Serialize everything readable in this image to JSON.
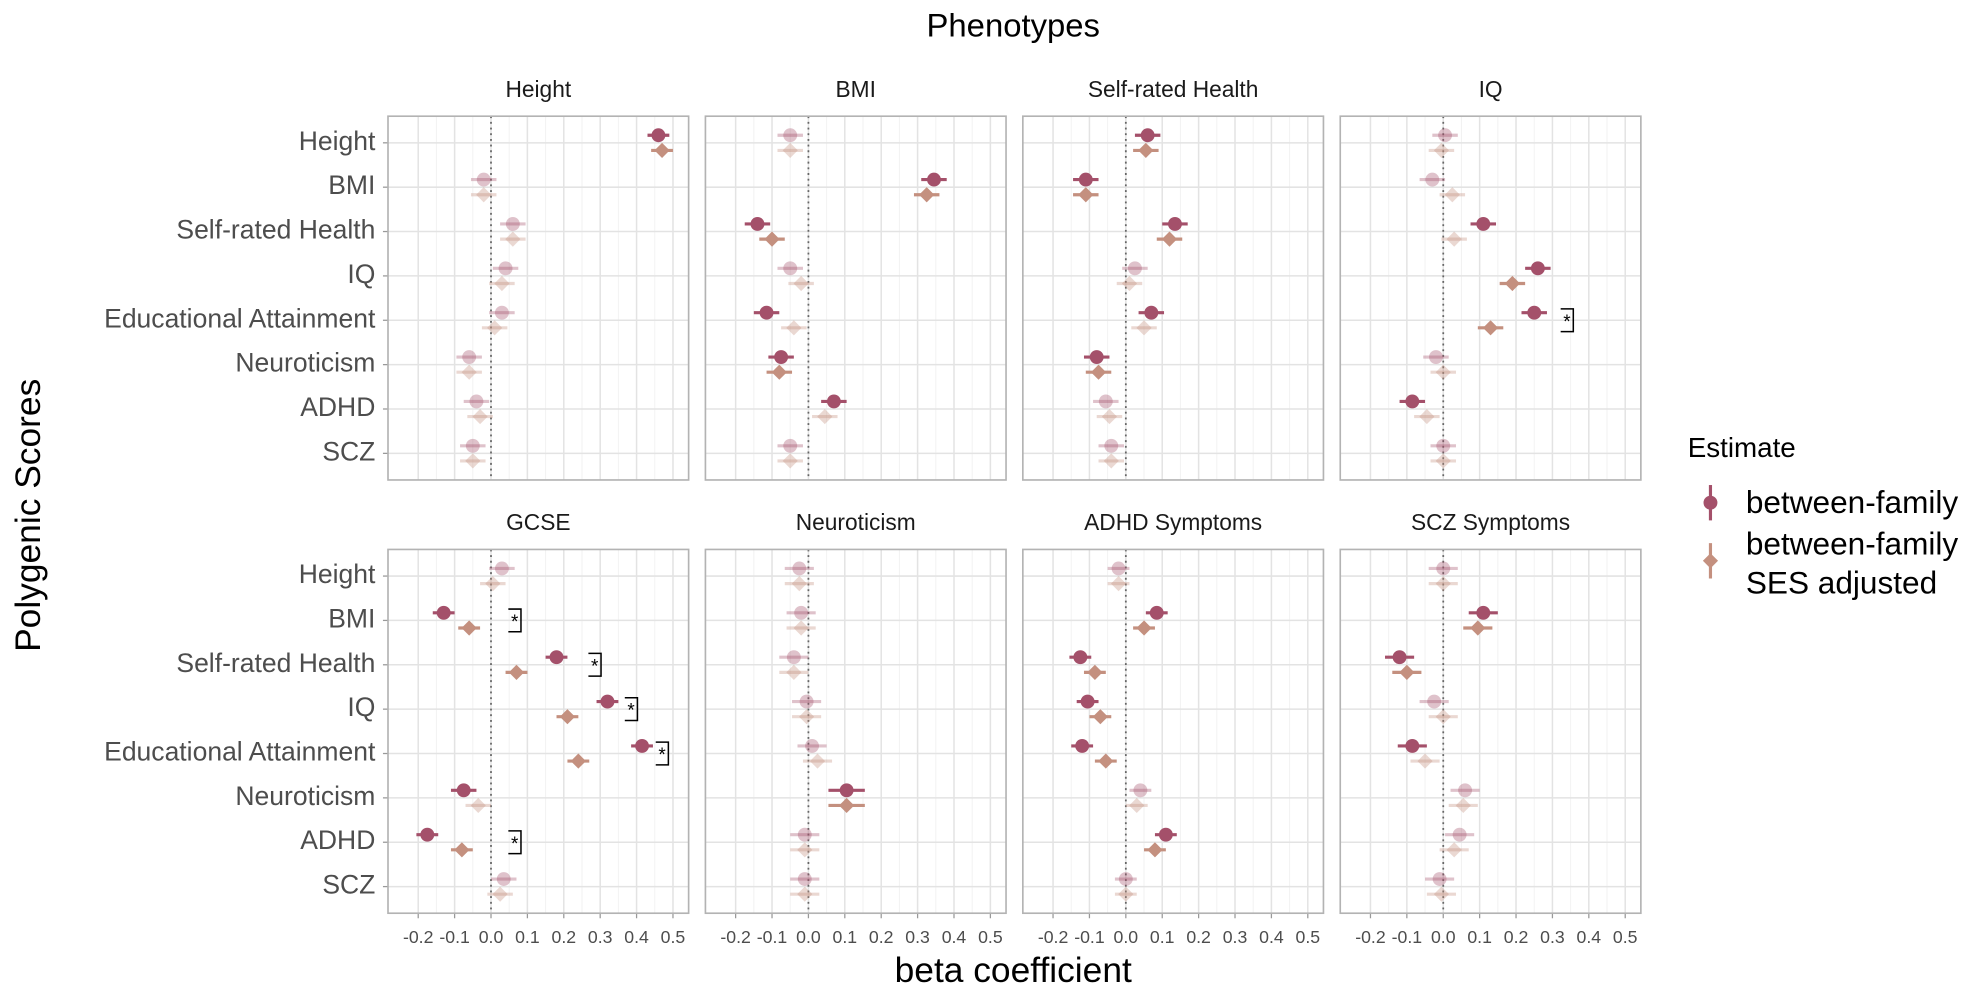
{
  "figure": {
    "title": "Phenotypes",
    "xlabel": "beta coefficient",
    "ylabel": "Polygenic Scores"
  },
  "categories": [
    "Height",
    "BMI",
    "Self-rated Health",
    "IQ",
    "Educational Attainment",
    "Neuroticism",
    "ADHD",
    "SCZ"
  ],
  "xlim": [
    -0.283,
    0.543
  ],
  "xticks": [
    -0.2,
    -0.1,
    {
      "value": 0,
      "label": "0.0"
    },
    0.1,
    0.2,
    0.3,
    0.4,
    0.5
  ],
  "legend": {
    "title": "Estimate",
    "series": [
      {
        "name": "between-family",
        "color": "#a4506a",
        "marker": "circle"
      },
      {
        "name": "between-family SES adjusted",
        "color": "#c4907f",
        "marker": "diamond"
      }
    ]
  },
  "chart_data": [
    {
      "type": "dot",
      "title": "Height",
      "series": [
        {
          "values": [
            0.46,
            -0.02,
            0.06,
            0.04,
            0.03,
            -0.06,
            -0.04,
            -0.05
          ],
          "errors": [
            0.03,
            0.035,
            0.035,
            0.035,
            0.035,
            0.035,
            0.035,
            0.035
          ],
          "alpha": [
            1,
            0.35,
            0.35,
            0.35,
            0.35,
            0.35,
            0.35,
            0.35
          ]
        },
        {
          "values": [
            0.47,
            -0.02,
            0.06,
            0.03,
            0.01,
            -0.06,
            -0.03,
            -0.05
          ],
          "errors": [
            0.03,
            0.035,
            0.035,
            0.035,
            0.035,
            0.035,
            0.035,
            0.035
          ],
          "alpha": [
            1,
            0.35,
            0.35,
            0.35,
            0.35,
            0.35,
            0.35,
            0.35
          ]
        }
      ]
    },
    {
      "type": "dot",
      "title": "BMI",
      "series": [
        {
          "values": [
            -0.05,
            0.345,
            -0.14,
            -0.05,
            -0.115,
            -0.075,
            0.07,
            -0.05
          ],
          "errors": [
            0.035,
            0.035,
            0.035,
            0.035,
            0.035,
            0.035,
            0.035,
            0.035
          ],
          "alpha": [
            0.35,
            1,
            1,
            0.35,
            1,
            1,
            1,
            0.35
          ]
        },
        {
          "values": [
            -0.05,
            0.325,
            -0.1,
            -0.02,
            -0.04,
            -0.08,
            0.045,
            -0.05
          ],
          "errors": [
            0.035,
            0.035,
            0.035,
            0.035,
            0.035,
            0.035,
            0.035,
            0.035
          ],
          "alpha": [
            0.35,
            1,
            1,
            0.35,
            0.35,
            1,
            0.35,
            0.35
          ]
        }
      ]
    },
    {
      "type": "dot",
      "title": "Self-rated Health",
      "series": [
        {
          "values": [
            0.06,
            -0.11,
            0.135,
            0.025,
            0.07,
            -0.08,
            -0.055,
            -0.04
          ],
          "errors": [
            0.035,
            0.035,
            0.035,
            0.035,
            0.035,
            0.035,
            0.035,
            0.035
          ],
          "alpha": [
            1,
            1,
            1,
            0.35,
            1,
            1,
            0.35,
            0.35
          ]
        },
        {
          "values": [
            0.055,
            -0.11,
            0.12,
            0.01,
            0.05,
            -0.075,
            -0.045,
            -0.04
          ],
          "errors": [
            0.035,
            0.035,
            0.035,
            0.035,
            0.035,
            0.035,
            0.035,
            0.035
          ],
          "alpha": [
            1,
            1,
            1,
            0.35,
            0.35,
            1,
            0.35,
            0.35
          ]
        }
      ]
    },
    {
      "type": "dot",
      "title": "IQ",
      "series": [
        {
          "values": [
            0.005,
            -0.03,
            0.11,
            0.26,
            0.25,
            -0.02,
            -0.085,
            0
          ],
          "errors": [
            0.035,
            0.035,
            0.035,
            0.035,
            0.035,
            0.035,
            0.035,
            0.035
          ],
          "alpha": [
            0.35,
            0.35,
            1,
            1,
            1,
            0.35,
            1,
            0.35
          ]
        },
        {
          "values": [
            -0.005,
            0.025,
            0.03,
            0.19,
            0.13,
            0,
            -0.045,
            0
          ],
          "errors": [
            0.035,
            0.035,
            0.035,
            0.035,
            0.035,
            0.035,
            0.035,
            0.035
          ],
          "alpha": [
            0.35,
            0.35,
            0.35,
            1,
            1,
            0.35,
            0.35,
            0.35
          ]
        }
      ],
      "annotations": [
        {
          "category": "Educational Attainment",
          "x": 0.34,
          "text": "*"
        }
      ]
    },
    {
      "type": "dot",
      "title": "GCSE",
      "series": [
        {
          "values": [
            0.03,
            -0.13,
            0.18,
            0.32,
            0.415,
            -0.075,
            -0.175,
            0.035
          ],
          "errors": [
            0.035,
            0.03,
            0.03,
            0.03,
            0.03,
            0.035,
            0.03,
            0.035
          ],
          "alpha": [
            0.35,
            1,
            1,
            1,
            1,
            1,
            1,
            0.35
          ]
        },
        {
          "values": [
            0.005,
            -0.06,
            0.07,
            0.21,
            0.24,
            -0.035,
            -0.08,
            0.025
          ],
          "errors": [
            0.035,
            0.03,
            0.03,
            0.03,
            0.03,
            0.035,
            0.03,
            0.035
          ],
          "alpha": [
            0.35,
            1,
            1,
            1,
            1,
            0.35,
            1,
            0.35
          ]
        }
      ],
      "annotations": [
        {
          "category": "BMI",
          "x": 0.065,
          "text": "*"
        },
        {
          "category": "Self-rated Health",
          "x": 0.285,
          "text": "*"
        },
        {
          "category": "IQ",
          "x": 0.385,
          "text": "*"
        },
        {
          "category": "Educational Attainment",
          "x": 0.47,
          "text": "*"
        },
        {
          "category": "ADHD",
          "x": 0.065,
          "text": "*"
        }
      ]
    },
    {
      "type": "dot",
      "title": "Neuroticism",
      "series": [
        {
          "values": [
            -0.025,
            -0.02,
            -0.04,
            -0.005,
            0.01,
            0.105,
            -0.01,
            -0.01
          ],
          "errors": [
            0.04,
            0.04,
            0.04,
            0.04,
            0.04,
            0.05,
            0.04,
            0.04
          ],
          "alpha": [
            0.35,
            0.35,
            0.35,
            0.35,
            0.35,
            1,
            0.35,
            0.35
          ]
        },
        {
          "values": [
            -0.025,
            -0.02,
            -0.04,
            -0.005,
            0.025,
            0.105,
            -0.01,
            -0.01
          ],
          "errors": [
            0.04,
            0.04,
            0.04,
            0.04,
            0.04,
            0.05,
            0.04,
            0.04
          ],
          "alpha": [
            0.35,
            0.35,
            0.35,
            0.35,
            0.35,
            1,
            0.35,
            0.35
          ]
        }
      ]
    },
    {
      "type": "dot",
      "title": "ADHD Symptoms",
      "series": [
        {
          "values": [
            -0.02,
            0.085,
            -0.125,
            -0.105,
            -0.12,
            0.04,
            0.11,
            0
          ],
          "errors": [
            0.03,
            0.03,
            0.03,
            0.03,
            0.03,
            0.03,
            0.03,
            0.03
          ],
          "alpha": [
            0.35,
            1,
            1,
            1,
            1,
            0.35,
            1,
            0.35
          ]
        },
        {
          "values": [
            -0.02,
            0.05,
            -0.085,
            -0.07,
            -0.055,
            0.03,
            0.08,
            0
          ],
          "errors": [
            0.03,
            0.03,
            0.03,
            0.03,
            0.03,
            0.03,
            0.03,
            0.03
          ],
          "alpha": [
            0.35,
            1,
            1,
            1,
            1,
            0.35,
            1,
            0.35
          ]
        }
      ]
    },
    {
      "type": "dot",
      "title": "SCZ Symptoms",
      "series": [
        {
          "values": [
            0,
            0.11,
            -0.12,
            -0.025,
            -0.085,
            0.06,
            0.045,
            -0.01
          ],
          "errors": [
            0.04,
            0.04,
            0.04,
            0.04,
            0.04,
            0.04,
            0.04,
            0.04
          ],
          "alpha": [
            0.35,
            1,
            1,
            0.35,
            1,
            0.35,
            0.35,
            0.35
          ]
        },
        {
          "values": [
            0,
            0.095,
            -0.1,
            0,
            -0.05,
            0.055,
            0.03,
            -0.005
          ],
          "errors": [
            0.04,
            0.04,
            0.04,
            0.04,
            0.04,
            0.04,
            0.04,
            0.04
          ],
          "alpha": [
            0.35,
            1,
            1,
            0.35,
            0.35,
            0.35,
            0.35,
            0.35
          ]
        }
      ]
    }
  ]
}
